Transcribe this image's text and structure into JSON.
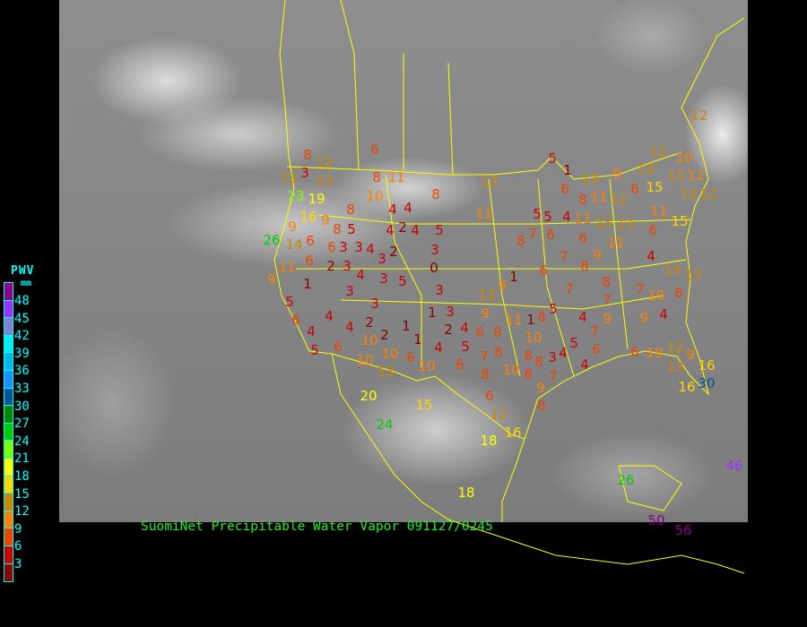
{
  "caption": "SuomiNet Precipitable Water Vapor 091127/0245",
  "legend": {
    "title": "PWV",
    "unit": "mm",
    "labels": [
      "48",
      "45",
      "42",
      "39",
      "36",
      "33",
      "30",
      "27",
      "24",
      "21",
      "18",
      "15",
      "12",
      "9",
      "6",
      "3"
    ],
    "colors": [
      "#8b008b",
      "#9933ff",
      "#8080d0",
      "#00eeee",
      "#00b8e8",
      "#1e90ff",
      "#005599",
      "#008800",
      "#00cc00",
      "#80ff00",
      "#ffff00",
      "#ffd700",
      "#cc8800",
      "#ff8000",
      "#ee4400",
      "#cc0000",
      "#8b0000"
    ]
  },
  "map": {
    "border_color": "#ffff00",
    "background": "infrared satellite (grayscale)"
  },
  "stations": [
    8,
    12,
    3,
    13,
    13,
    23,
    19,
    16,
    9,
    8,
    9,
    6,
    26,
    14,
    6,
    6,
    11,
    9,
    1,
    2,
    3,
    5,
    8,
    6,
    8,
    11,
    10,
    3,
    4,
    3,
    3,
    2,
    4,
    4,
    4,
    2,
    4,
    5,
    3,
    0,
    8,
    13,
    11,
    4,
    3,
    5,
    3,
    3,
    3,
    5,
    4,
    6,
    4,
    5,
    6,
    4,
    2,
    2,
    1,
    1,
    10,
    10,
    10,
    13,
    6,
    10,
    4,
    1,
    3,
    2,
    4,
    6,
    8,
    8,
    5,
    7,
    8,
    6,
    9,
    13,
    9,
    1,
    11,
    1,
    8,
    10,
    8,
    8,
    10,
    8,
    9,
    7,
    8,
    6,
    12,
    16,
    18,
    15,
    20,
    24,
    18,
    26,
    46,
    50,
    56,
    30,
    16,
    16,
    9,
    12,
    10,
    6,
    13,
    4,
    4,
    3,
    5,
    6,
    7,
    4,
    5,
    7,
    9,
    4,
    10,
    7,
    7,
    8,
    9,
    6,
    8,
    7,
    6,
    5,
    5,
    4,
    6,
    7,
    8,
    9,
    11,
    13,
    13,
    11,
    12,
    11,
    8,
    6,
    1,
    13,
    9,
    6,
    13,
    15,
    12,
    12,
    10,
    11,
    12,
    12,
    11,
    6,
    15,
    4,
    14,
    13,
    8,
    5,
    12
  ]
}
